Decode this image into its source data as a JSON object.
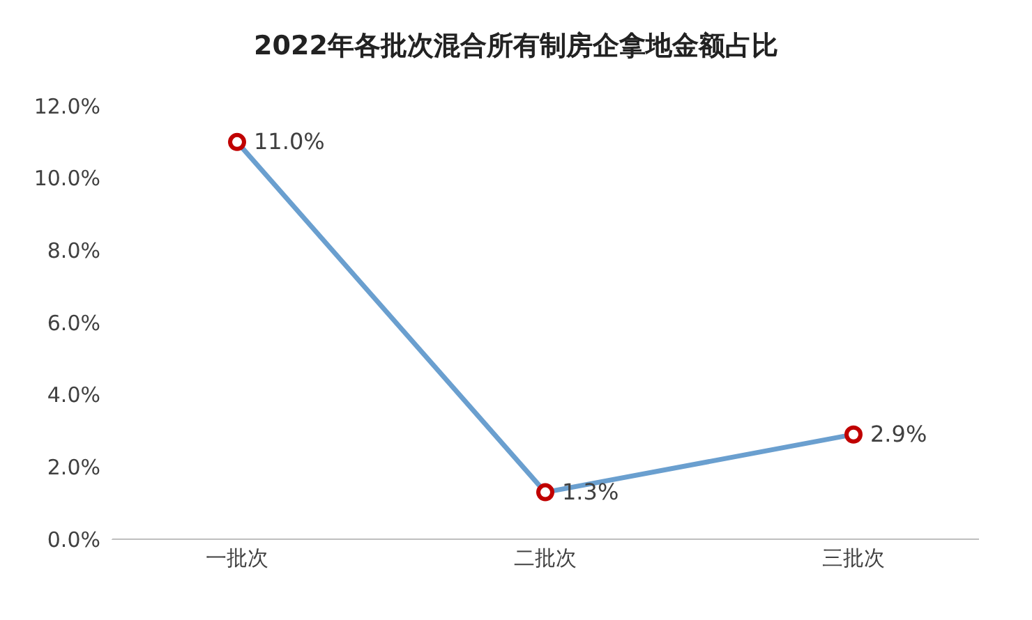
{
  "chart_data": {
    "type": "line",
    "title": "2022年各批次混合所有制房企拿地金额占比",
    "categories": [
      "一批次",
      "二批次",
      "三批次"
    ],
    "series": [
      {
        "color": "#6a9fcf",
        "colors": [
          "#c00000",
          "#c00000",
          "#c00000"
        ],
        "values": [
          11.0,
          1.3,
          2.9
        ],
        "value_labels": [
          "11.0%",
          "1.3%",
          "2.9%"
        ]
      }
    ],
    "ylim": [
      0,
      12
    ],
    "yticks": [
      {
        "value": 0,
        "label": "0.0%"
      },
      {
        "value": 2,
        "label": "2.0%"
      },
      {
        "value": 4,
        "label": "4.0%"
      },
      {
        "value": 6,
        "label": "6.0%"
      },
      {
        "value": 8,
        "label": "8.0%"
      },
      {
        "value": 10,
        "label": "10.0%"
      },
      {
        "value": 12,
        "label": "12.0%"
      }
    ],
    "grid": false,
    "legend": false,
    "marker": "circle",
    "line_style": "solid"
  }
}
